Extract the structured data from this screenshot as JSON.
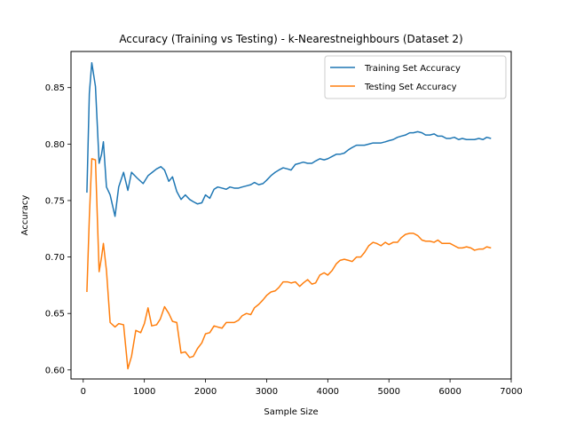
{
  "chart_data": {
    "type": "line",
    "title": "Accuracy (Training vs Testing) - k-Nearestneighbours (Dataset 2)",
    "xlabel": "Sample Size",
    "ylabel": "Accuracy",
    "xlim": [
      -200,
      7000
    ],
    "ylim": [
      0.592,
      0.882
    ],
    "xticks": [
      0,
      1000,
      2000,
      3000,
      4000,
      5000,
      6000,
      7000
    ],
    "yticks": [
      0.6,
      0.65,
      0.7,
      0.75,
      0.8,
      0.85
    ],
    "grid": false,
    "legend_position": "top-right",
    "series": [
      {
        "name": "Training Set Accuracy",
        "color": "#1f77b4",
        "points": [
          [
            60,
            0.757
          ],
          [
            100,
            0.845
          ],
          [
            140,
            0.872
          ],
          [
            200,
            0.851
          ],
          [
            260,
            0.783
          ],
          [
            300,
            0.791
          ],
          [
            330,
            0.802
          ],
          [
            380,
            0.762
          ],
          [
            440,
            0.755
          ],
          [
            520,
            0.736
          ],
          [
            580,
            0.762
          ],
          [
            660,
            0.775
          ],
          [
            730,
            0.759
          ],
          [
            790,
            0.775
          ],
          [
            880,
            0.77
          ],
          [
            980,
            0.765
          ],
          [
            1060,
            0.772
          ],
          [
            1130,
            0.775
          ],
          [
            1200,
            0.778
          ],
          [
            1270,
            0.78
          ],
          [
            1330,
            0.777
          ],
          [
            1400,
            0.767
          ],
          [
            1460,
            0.771
          ],
          [
            1530,
            0.758
          ],
          [
            1600,
            0.751
          ],
          [
            1670,
            0.755
          ],
          [
            1740,
            0.751
          ],
          [
            1800,
            0.749
          ],
          [
            1870,
            0.747
          ],
          [
            1940,
            0.748
          ],
          [
            2000,
            0.755
          ],
          [
            2070,
            0.752
          ],
          [
            2140,
            0.76
          ],
          [
            2200,
            0.762
          ],
          [
            2270,
            0.761
          ],
          [
            2340,
            0.76
          ],
          [
            2400,
            0.762
          ],
          [
            2470,
            0.761
          ],
          [
            2540,
            0.761
          ],
          [
            2600,
            0.762
          ],
          [
            2670,
            0.763
          ],
          [
            2740,
            0.764
          ],
          [
            2800,
            0.766
          ],
          [
            2870,
            0.764
          ],
          [
            2940,
            0.765
          ],
          [
            3000,
            0.768
          ],
          [
            3070,
            0.772
          ],
          [
            3140,
            0.775
          ],
          [
            3200,
            0.777
          ],
          [
            3270,
            0.779
          ],
          [
            3340,
            0.778
          ],
          [
            3400,
            0.777
          ],
          [
            3470,
            0.782
          ],
          [
            3540,
            0.783
          ],
          [
            3600,
            0.784
          ],
          [
            3670,
            0.783
          ],
          [
            3740,
            0.783
          ],
          [
            3800,
            0.785
          ],
          [
            3870,
            0.787
          ],
          [
            3940,
            0.786
          ],
          [
            4000,
            0.787
          ],
          [
            4070,
            0.789
          ],
          [
            4140,
            0.791
          ],
          [
            4200,
            0.791
          ],
          [
            4270,
            0.792
          ],
          [
            4340,
            0.795
          ],
          [
            4400,
            0.797
          ],
          [
            4470,
            0.799
          ],
          [
            4540,
            0.799
          ],
          [
            4600,
            0.799
          ],
          [
            4670,
            0.8
          ],
          [
            4740,
            0.801
          ],
          [
            4800,
            0.801
          ],
          [
            4870,
            0.801
          ],
          [
            4940,
            0.802
          ],
          [
            5000,
            0.803
          ],
          [
            5070,
            0.804
          ],
          [
            5140,
            0.806
          ],
          [
            5200,
            0.807
          ],
          [
            5270,
            0.808
          ],
          [
            5340,
            0.81
          ],
          [
            5400,
            0.81
          ],
          [
            5470,
            0.811
          ],
          [
            5540,
            0.81
          ],
          [
            5600,
            0.808
          ],
          [
            5670,
            0.808
          ],
          [
            5740,
            0.809
          ],
          [
            5800,
            0.807
          ],
          [
            5870,
            0.807
          ],
          [
            5940,
            0.805
          ],
          [
            6000,
            0.805
          ],
          [
            6070,
            0.806
          ],
          [
            6140,
            0.804
          ],
          [
            6200,
            0.805
          ],
          [
            6270,
            0.804
          ],
          [
            6340,
            0.804
          ],
          [
            6400,
            0.804
          ],
          [
            6470,
            0.805
          ],
          [
            6540,
            0.804
          ],
          [
            6600,
            0.806
          ],
          [
            6670,
            0.805
          ]
        ]
      },
      {
        "name": "Testing Set Accuracy",
        "color": "#ff7f0e",
        "points": [
          [
            60,
            0.669
          ],
          [
            100,
            0.735
          ],
          [
            140,
            0.787
          ],
          [
            200,
            0.786
          ],
          [
            260,
            0.687
          ],
          [
            300,
            0.7
          ],
          [
            330,
            0.712
          ],
          [
            380,
            0.688
          ],
          [
            440,
            0.642
          ],
          [
            520,
            0.638
          ],
          [
            580,
            0.641
          ],
          [
            660,
            0.64
          ],
          [
            730,
            0.601
          ],
          [
            790,
            0.612
          ],
          [
            860,
            0.635
          ],
          [
            940,
            0.633
          ],
          [
            1000,
            0.641
          ],
          [
            1060,
            0.655
          ],
          [
            1120,
            0.639
          ],
          [
            1200,
            0.64
          ],
          [
            1260,
            0.645
          ],
          [
            1330,
            0.656
          ],
          [
            1400,
            0.65
          ],
          [
            1460,
            0.643
          ],
          [
            1530,
            0.642
          ],
          [
            1600,
            0.615
          ],
          [
            1670,
            0.616
          ],
          [
            1740,
            0.611
          ],
          [
            1800,
            0.612
          ],
          [
            1870,
            0.619
          ],
          [
            1940,
            0.624
          ],
          [
            2000,
            0.632
          ],
          [
            2070,
            0.633
          ],
          [
            2140,
            0.639
          ],
          [
            2200,
            0.638
          ],
          [
            2270,
            0.637
          ],
          [
            2340,
            0.642
          ],
          [
            2400,
            0.642
          ],
          [
            2470,
            0.642
          ],
          [
            2540,
            0.644
          ],
          [
            2600,
            0.648
          ],
          [
            2670,
            0.65
          ],
          [
            2740,
            0.649
          ],
          [
            2800,
            0.655
          ],
          [
            2870,
            0.658
          ],
          [
            2940,
            0.662
          ],
          [
            3000,
            0.666
          ],
          [
            3070,
            0.669
          ],
          [
            3140,
            0.67
          ],
          [
            3200,
            0.673
          ],
          [
            3270,
            0.678
          ],
          [
            3340,
            0.678
          ],
          [
            3400,
            0.677
          ],
          [
            3470,
            0.678
          ],
          [
            3540,
            0.674
          ],
          [
            3600,
            0.677
          ],
          [
            3670,
            0.68
          ],
          [
            3740,
            0.676
          ],
          [
            3800,
            0.677
          ],
          [
            3870,
            0.684
          ],
          [
            3940,
            0.686
          ],
          [
            4000,
            0.684
          ],
          [
            4070,
            0.688
          ],
          [
            4140,
            0.694
          ],
          [
            4200,
            0.697
          ],
          [
            4270,
            0.698
          ],
          [
            4340,
            0.697
          ],
          [
            4400,
            0.696
          ],
          [
            4470,
            0.7
          ],
          [
            4540,
            0.7
          ],
          [
            4600,
            0.704
          ],
          [
            4670,
            0.71
          ],
          [
            4740,
            0.713
          ],
          [
            4800,
            0.712
          ],
          [
            4870,
            0.71
          ],
          [
            4940,
            0.713
          ],
          [
            5000,
            0.711
          ],
          [
            5070,
            0.713
          ],
          [
            5140,
            0.713
          ],
          [
            5200,
            0.717
          ],
          [
            5270,
            0.72
          ],
          [
            5340,
            0.721
          ],
          [
            5400,
            0.721
          ],
          [
            5470,
            0.719
          ],
          [
            5540,
            0.715
          ],
          [
            5600,
            0.714
          ],
          [
            5670,
            0.714
          ],
          [
            5740,
            0.713
          ],
          [
            5800,
            0.715
          ],
          [
            5870,
            0.712
          ],
          [
            5940,
            0.712
          ],
          [
            6000,
            0.712
          ],
          [
            6070,
            0.71
          ],
          [
            6140,
            0.708
          ],
          [
            6200,
            0.708
          ],
          [
            6270,
            0.709
          ],
          [
            6340,
            0.708
          ],
          [
            6400,
            0.706
          ],
          [
            6470,
            0.707
          ],
          [
            6540,
            0.707
          ],
          [
            6600,
            0.709
          ],
          [
            6670,
            0.708
          ]
        ]
      }
    ]
  }
}
